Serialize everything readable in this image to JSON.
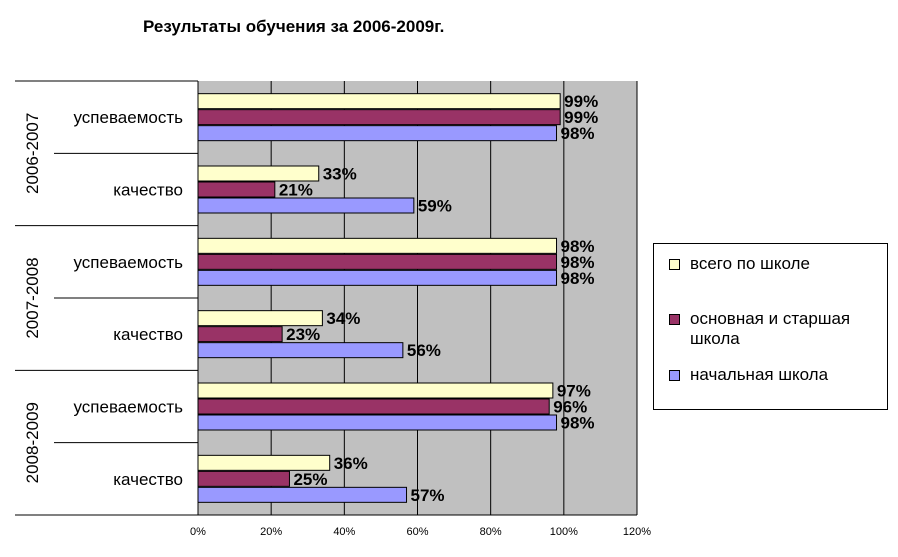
{
  "chart_data": {
    "type": "bar",
    "orientation": "horizontal",
    "title": "Результаты обучения за 2006-2009г.",
    "groups": [
      "2006-2007",
      "2007-2008",
      "2008-2009"
    ],
    "categories": [
      "успеваемость",
      "качество"
    ],
    "series": [
      {
        "name": "всего по школе",
        "color": "#ffffcc",
        "values": [
          [
            99,
            33
          ],
          [
            98,
            34
          ],
          [
            97,
            36
          ]
        ],
        "labels": [
          [
            "99%",
            "33%"
          ],
          [
            "98%",
            "34%"
          ],
          [
            "97%",
            "36%"
          ]
        ]
      },
      {
        "name": "основная и старшая школа",
        "color": "#993366",
        "values": [
          [
            99,
            21
          ],
          [
            98,
            23
          ],
          [
            96,
            25
          ]
        ],
        "labels": [
          [
            "99%",
            "21%"
          ],
          [
            "98%",
            "23%"
          ],
          [
            "96%",
            "25%"
          ]
        ]
      },
      {
        "name": "начальная школа",
        "color": "#9999ff",
        "values": [
          [
            98,
            59
          ],
          [
            98,
            56
          ],
          [
            98,
            57
          ]
        ],
        "labels": [
          [
            "98%",
            "59%"
          ],
          [
            "98%",
            "56%"
          ],
          [
            "98%",
            "57%"
          ]
        ]
      }
    ],
    "xlim": [
      0,
      120
    ],
    "x_ticks": [
      "0%",
      "20%",
      "40%",
      "60%",
      "80%",
      "100%",
      "120%"
    ],
    "grid": true,
    "plot_background": "#c0c0c0",
    "legend_position": "right"
  }
}
